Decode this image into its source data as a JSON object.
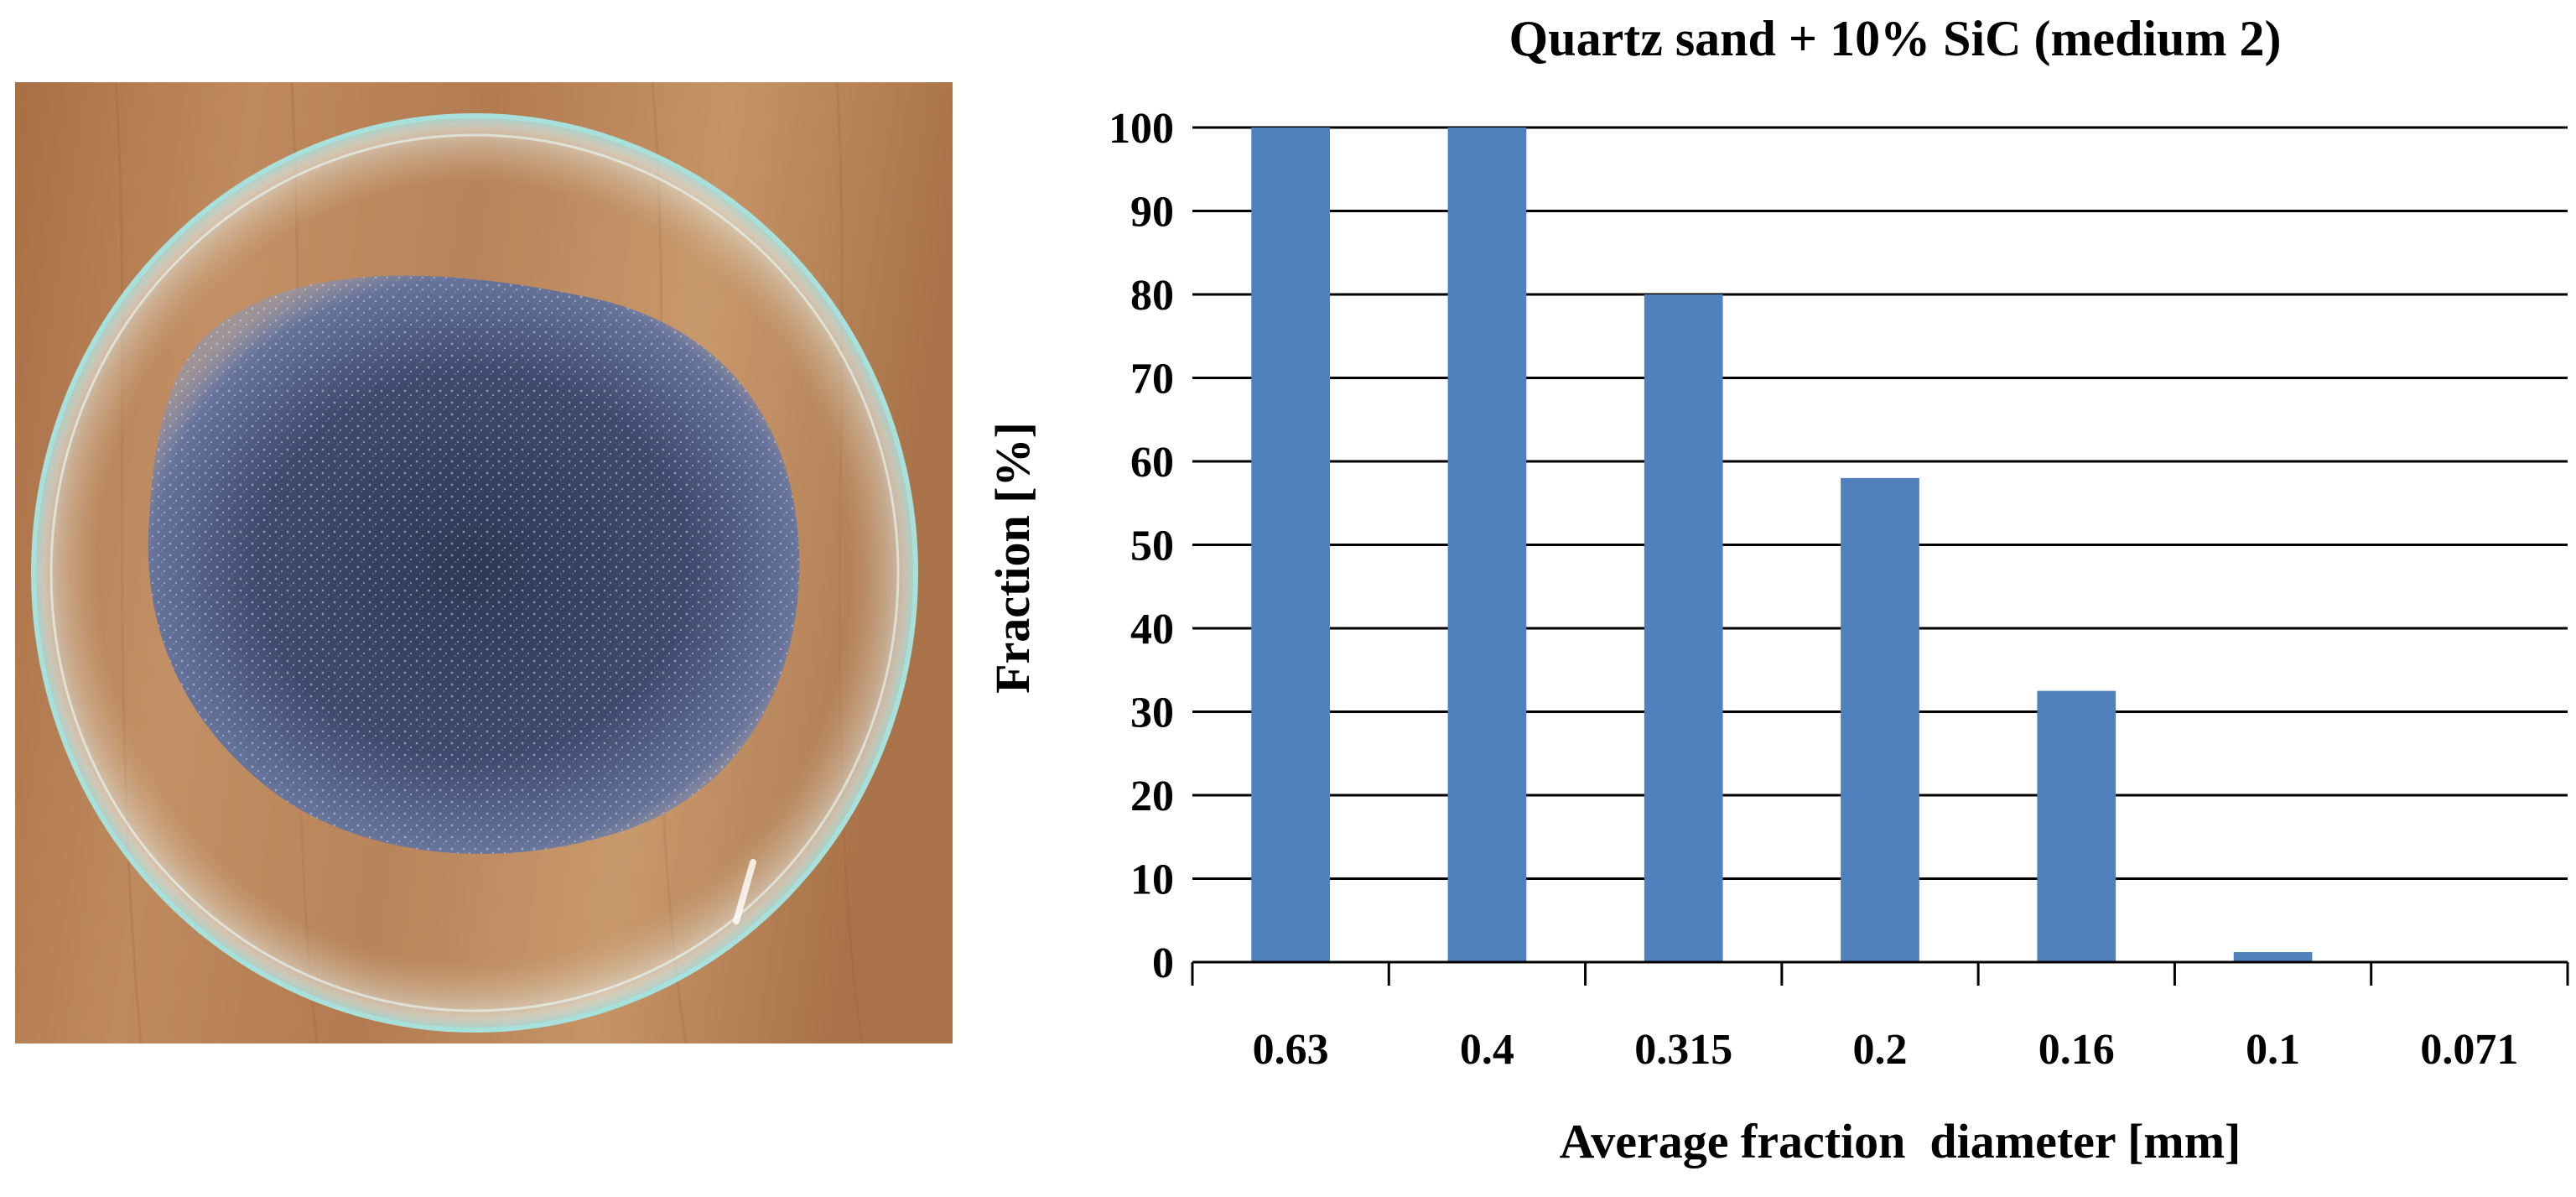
{
  "photo": {
    "subject": "petri-dish-with-sand-icon",
    "colors": {
      "wood": "#b07a4f",
      "sand": "#3f4a6b",
      "glass": "#bfe7e6"
    }
  },
  "chart_data": {
    "type": "bar",
    "title": "Quartz sand + 10% SiC (medium 2)",
    "xlabel": "Average fraction  diameter [mm]",
    "ylabel": "Fraction [%]",
    "categories": [
      "0.63",
      "0.4",
      "0.315",
      "0.2",
      "0.16",
      "0.1",
      "0.071"
    ],
    "values": [
      100,
      100,
      80,
      58,
      32.5,
      1.2,
      0
    ],
    "ylim": [
      0,
      100
    ],
    "yticks": [
      0,
      10,
      20,
      30,
      40,
      50,
      60,
      70,
      80,
      90,
      100
    ],
    "ytick_labels": [
      "0",
      "10",
      "20",
      "30",
      "40",
      "50",
      "60",
      "70",
      "80",
      "90",
      "100"
    ],
    "grid": true,
    "legend": "none",
    "colors": {
      "bar": "#4f81bd",
      "grid": "#000000"
    }
  }
}
